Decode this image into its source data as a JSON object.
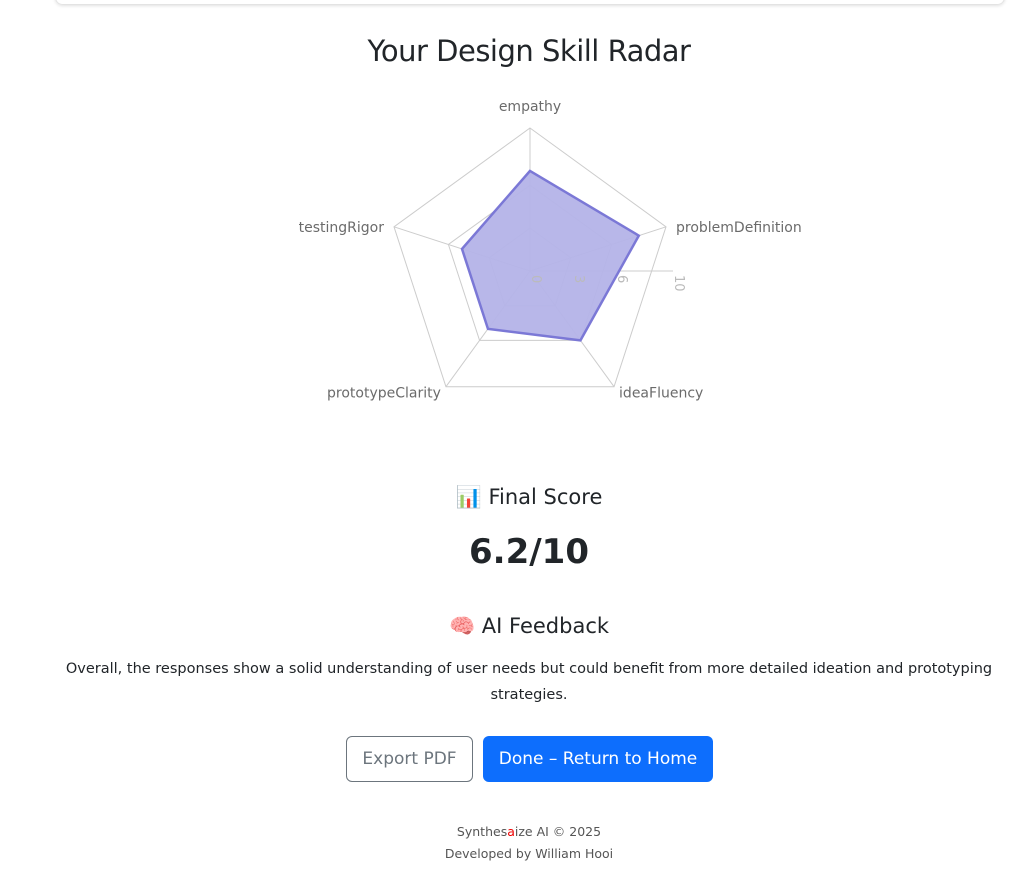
{
  "title": "Your Design Skill Radar",
  "chart_data": {
    "type": "radar",
    "categories": [
      "empathy",
      "problemDefinition",
      "ideaFluency",
      "prototypeClarity",
      "testingRigor"
    ],
    "values": [
      7,
      8,
      6,
      5,
      5
    ],
    "radial_range": [
      0,
      10
    ],
    "radial_ticks": [
      0,
      3,
      6,
      10
    ],
    "fill_color": "#b4b3e8",
    "line_color": "#7b78d6",
    "grid_color": "#cccccc"
  },
  "final_score": {
    "icon": "bar-chart-icon",
    "emoji": "📊",
    "label": "Final Score",
    "value": "6.2/10"
  },
  "feedback": {
    "icon": "brain-icon",
    "emoji": "🧠",
    "label": "AI Feedback",
    "text": "Overall, the responses show a solid understanding of user needs but could benefit from more detailed ideation and prototyping strategies."
  },
  "buttons": {
    "export": "Export PDF",
    "done": "Done – Return to Home"
  },
  "footer": {
    "brand_a": "Synthes",
    "brand_b": "a",
    "brand_c": "ize AI © 2025",
    "credit": "Developed by William Hooi"
  },
  "colors": {
    "primary": "#0d6efd",
    "brand_accent": "#ee0000"
  }
}
